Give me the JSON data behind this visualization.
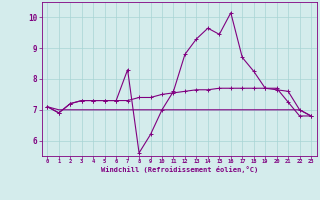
{
  "xlabel": "Windchill (Refroidissement éolien,°C)",
  "x_hours": [
    0,
    1,
    2,
    3,
    4,
    5,
    6,
    7,
    8,
    9,
    10,
    11,
    12,
    13,
    14,
    15,
    16,
    17,
    18,
    19,
    20,
    21,
    22,
    23
  ],
  "line1_y": [
    7.1,
    6.9,
    7.2,
    7.3,
    7.3,
    7.3,
    7.3,
    8.3,
    5.6,
    6.2,
    7.0,
    7.6,
    8.8,
    9.3,
    9.65,
    9.45,
    10.15,
    8.7,
    8.25,
    7.7,
    7.7,
    7.25,
    6.8,
    6.8
  ],
  "line2_y": [
    7.1,
    6.9,
    7.2,
    7.3,
    7.3,
    7.3,
    7.3,
    7.3,
    7.4,
    7.4,
    7.5,
    7.55,
    7.6,
    7.65,
    7.65,
    7.7,
    7.7,
    7.7,
    7.7,
    7.7,
    7.65,
    7.6,
    7.0,
    6.8
  ],
  "line3_y": [
    7.1,
    7.0,
    7.0,
    7.0,
    7.0,
    7.0,
    7.0,
    7.0,
    7.0,
    7.0,
    7.0,
    7.0,
    7.0,
    7.0,
    7.0,
    7.0,
    7.0,
    7.0,
    7.0,
    7.0,
    7.0,
    7.0,
    7.0,
    6.8
  ],
  "line_color": "#800080",
  "bg_color": "#d4ecec",
  "grid_color": "#a8d4d4",
  "ylim": [
    5.5,
    10.5
  ],
  "yticks": [
    6,
    7,
    8,
    9,
    10
  ],
  "marker_size": 2.5,
  "linewidth": 0.8
}
